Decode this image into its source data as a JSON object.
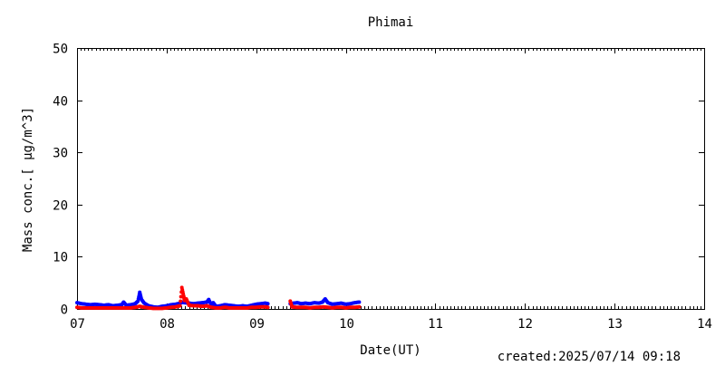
{
  "chart_data": {
    "type": "scatter",
    "title": "Phimai",
    "xlabel": "Date(UT)",
    "ylabel": "Mass conc.[ μg/m^3]",
    "footer": "created:2025/07/14 09:18",
    "xlim": [
      7,
      14
    ],
    "ylim": [
      0,
      50
    ],
    "x_ticks": [
      "07",
      "08",
      "09",
      "10",
      "11",
      "12",
      "13",
      "14"
    ],
    "y_ticks": [
      "0",
      "10",
      "20",
      "30",
      "40",
      "50"
    ],
    "grid": false,
    "series": [
      {
        "color": "#0000ff",
        "points": [
          [
            7.0,
            1.2
          ],
          [
            7.05,
            1.0
          ],
          [
            7.1,
            0.9
          ],
          [
            7.15,
            0.8
          ],
          [
            7.2,
            0.9
          ],
          [
            7.25,
            0.8
          ],
          [
            7.3,
            0.7
          ],
          [
            7.35,
            0.8
          ],
          [
            7.4,
            0.6
          ],
          [
            7.45,
            0.7
          ],
          [
            7.5,
            0.8
          ],
          [
            7.52,
            1.3
          ],
          [
            7.55,
            0.7
          ],
          [
            7.6,
            0.8
          ],
          [
            7.65,
            1.0
          ],
          [
            7.68,
            1.5
          ],
          [
            7.7,
            3.2
          ],
          [
            7.72,
            1.8
          ],
          [
            7.75,
            1.1
          ],
          [
            7.8,
            0.6
          ],
          [
            7.85,
            0.4
          ],
          [
            7.9,
            0.3
          ],
          [
            7.95,
            0.5
          ],
          [
            8.0,
            0.6
          ],
          [
            8.05,
            0.8
          ],
          [
            8.1,
            0.9
          ],
          [
            8.15,
            1.1
          ],
          [
            8.18,
            1.3
          ],
          [
            8.2,
            1.2
          ],
          [
            8.25,
            1.1
          ],
          [
            8.3,
            1.0
          ],
          [
            8.35,
            1.1
          ],
          [
            8.4,
            1.2
          ],
          [
            8.45,
            1.3
          ],
          [
            8.47,
            1.8
          ],
          [
            8.5,
            0.7
          ],
          [
            8.52,
            1.2
          ],
          [
            8.55,
            0.5
          ],
          [
            8.6,
            0.6
          ],
          [
            8.65,
            0.8
          ],
          [
            8.7,
            0.7
          ],
          [
            8.75,
            0.6
          ],
          [
            8.8,
            0.5
          ],
          [
            8.85,
            0.6
          ],
          [
            8.9,
            0.5
          ],
          [
            8.95,
            0.7
          ],
          [
            9.0,
            0.9
          ],
          [
            9.05,
            1.0
          ],
          [
            9.1,
            1.1
          ],
          [
            9.13,
            1.0
          ],
          [
            9.38,
            1.0
          ],
          [
            9.42,
            1.1
          ],
          [
            9.46,
            1.2
          ],
          [
            9.5,
            1.0
          ],
          [
            9.55,
            1.1
          ],
          [
            9.6,
            1.0
          ],
          [
            9.65,
            1.2
          ],
          [
            9.7,
            1.1
          ],
          [
            9.74,
            1.3
          ],
          [
            9.77,
            1.9
          ],
          [
            9.8,
            1.2
          ],
          [
            9.85,
            0.9
          ],
          [
            9.9,
            1.0
          ],
          [
            9.95,
            1.1
          ],
          [
            10.0,
            0.9
          ],
          [
            10.05,
            1.0
          ],
          [
            10.1,
            1.2
          ],
          [
            10.15,
            1.3
          ]
        ]
      },
      {
        "color": "#ff0000",
        "points": [
          [
            7.0,
            0.3
          ],
          [
            7.05,
            0.2
          ],
          [
            7.1,
            0.2
          ],
          [
            7.15,
            0.2
          ],
          [
            7.2,
            0.2
          ],
          [
            7.25,
            0.2
          ],
          [
            7.3,
            0.2
          ],
          [
            7.35,
            0.2
          ],
          [
            7.4,
            0.2
          ],
          [
            7.45,
            0.2
          ],
          [
            7.5,
            0.2
          ],
          [
            7.55,
            0.2
          ],
          [
            7.6,
            0.2
          ],
          [
            7.65,
            0.3
          ],
          [
            7.7,
            0.5
          ],
          [
            7.75,
            0.3
          ],
          [
            7.8,
            0.2
          ],
          [
            7.85,
            0.1
          ],
          [
            7.9,
            0.1
          ],
          [
            7.95,
            0.1
          ],
          [
            8.0,
            0.2
          ],
          [
            8.05,
            0.3
          ],
          [
            8.1,
            0.4
          ],
          [
            8.15,
            0.6
          ],
          [
            8.17,
            4.1
          ],
          [
            8.19,
            2.5
          ],
          [
            8.2,
            1.6
          ],
          [
            8.22,
            1.9
          ],
          [
            8.25,
            0.7
          ],
          [
            8.3,
            0.6
          ],
          [
            8.35,
            0.6
          ],
          [
            8.4,
            0.5
          ],
          [
            8.45,
            0.6
          ],
          [
            8.5,
            0.3
          ],
          [
            8.55,
            0.2
          ],
          [
            8.6,
            0.2
          ],
          [
            8.65,
            0.3
          ],
          [
            8.7,
            0.2
          ],
          [
            8.75,
            0.2
          ],
          [
            8.8,
            0.2
          ],
          [
            8.85,
            0.2
          ],
          [
            8.9,
            0.2
          ],
          [
            8.95,
            0.3
          ],
          [
            9.0,
            0.3
          ],
          [
            9.05,
            0.4
          ],
          [
            9.1,
            0.4
          ],
          [
            9.13,
            0.3
          ],
          [
            9.38,
            1.5
          ],
          [
            9.4,
            0.4
          ],
          [
            9.45,
            0.3
          ],
          [
            9.5,
            0.3
          ],
          [
            9.55,
            0.3
          ],
          [
            9.6,
            0.2
          ],
          [
            9.65,
            0.3
          ],
          [
            9.7,
            0.3
          ],
          [
            9.75,
            0.4
          ],
          [
            9.8,
            0.3
          ],
          [
            9.85,
            0.2
          ],
          [
            9.9,
            0.3
          ],
          [
            9.95,
            0.3
          ],
          [
            10.0,
            0.2
          ],
          [
            10.05,
            0.3
          ],
          [
            10.1,
            0.3
          ],
          [
            10.15,
            0.4
          ]
        ]
      }
    ]
  }
}
